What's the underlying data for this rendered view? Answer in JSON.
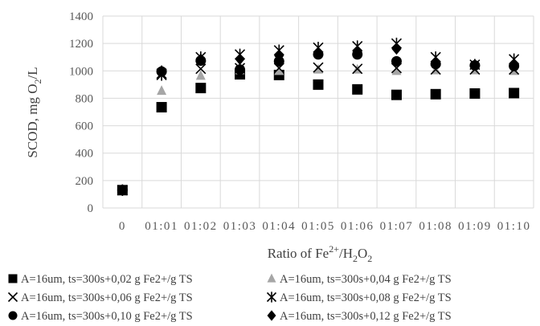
{
  "chart_data": {
    "type": "scatter",
    "categories": [
      "0",
      "01:01",
      "01:02",
      "01:03",
      "01:04",
      "01:05",
      "01:06",
      "01:07",
      "01:08",
      "01:09",
      "01:10"
    ],
    "xlabel": {
      "base": "Ratio of Fe",
      "sup1": "2+",
      "mid": "/H",
      "sub1": "2",
      "mid2": "O",
      "sub2": "2"
    },
    "ylabel": {
      "base": "SCOD, mg O",
      "sub": "2",
      "tail": "/L"
    },
    "ylim": [
      0,
      1400
    ],
    "yticks": [
      0,
      200,
      400,
      600,
      800,
      1000,
      1200,
      1400
    ],
    "grid": "vertical and horizontal",
    "legend_position": "bottom",
    "series": [
      {
        "name": "A=16um, ts=300s+0,02 g Fe2+/g TS",
        "marker": "square",
        "color": "#000000",
        "values": [
          130,
          735,
          875,
          975,
          970,
          900,
          865,
          825,
          830,
          835,
          838
        ]
      },
      {
        "name": "A=16um, ts=300s+0,04 g Fe2+/g TS",
        "marker": "triangle",
        "color": "#a6a6a6",
        "values": [
          130,
          855,
          965,
          1005,
          1000,
          1010,
          1010,
          1000,
          1005,
          1005,
          1000
        ]
      },
      {
        "name": "A=16um, ts=300s+0,06 g Fe2+/g TS",
        "marker": "x",
        "color": "#000000",
        "values": [
          130,
          980,
          1015,
          1020,
          1020,
          1025,
          1015,
          1020,
          1010,
          1010,
          1010
        ]
      },
      {
        "name": "A=16um, ts=300s+0,08 g Fe2+/g TS",
        "marker": "star",
        "color": "#000000",
        "values": [
          130,
          970,
          1100,
          1120,
          1150,
          1170,
          1180,
          1200,
          1100,
          1045,
          1085
        ]
      },
      {
        "name": "A=16um, ts=300s+0,10 g Fe2+/g TS",
        "marker": "circle",
        "color": "#000000",
        "values": [
          130,
          995,
          1075,
          1010,
          1070,
          1120,
          1120,
          1070,
          1050,
          1040,
          1035
        ]
      },
      {
        "name": "A=16um, ts=300s+0,12 g Fe2+/g TS",
        "marker": "diamond",
        "color": "#000000",
        "values": [
          130,
          1000,
          1085,
          1085,
          1110,
          1130,
          1140,
          1160,
          1060,
          1045,
          1045
        ]
      }
    ]
  }
}
